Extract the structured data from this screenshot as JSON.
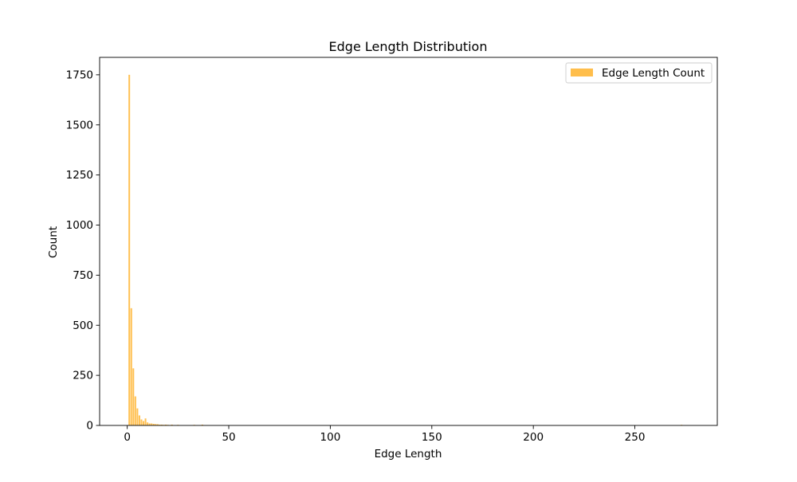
{
  "chart_data": {
    "type": "bar",
    "title": "Edge Length Distribution",
    "xlabel": "Edge Length",
    "ylabel": "Count",
    "xlim": [
      -13.6,
      290.6
    ],
    "ylim": [
      0,
      1837
    ],
    "xticks": [
      0,
      50,
      100,
      150,
      200,
      250
    ],
    "yticks": [
      0,
      250,
      500,
      750,
      1000,
      1250,
      1500,
      1750
    ],
    "bar_width": 0.8,
    "bar_color": "#FFBE4B",
    "grid": false,
    "legend": {
      "position": "top-right",
      "entries": [
        "Edge Length Count"
      ]
    },
    "series": [
      {
        "name": "Edge Length Count",
        "x": [
          1,
          2,
          3,
          4,
          5,
          6,
          7,
          8,
          9,
          10,
          11,
          12,
          13,
          14,
          15,
          16,
          17,
          18,
          19,
          20,
          22,
          25,
          33,
          37,
          273
        ],
        "values": [
          1750,
          585,
          285,
          145,
          85,
          50,
          30,
          22,
          35,
          15,
          10,
          10,
          8,
          7,
          6,
          4,
          4,
          3,
          4,
          3,
          4,
          3,
          3,
          4,
          3
        ]
      }
    ]
  }
}
